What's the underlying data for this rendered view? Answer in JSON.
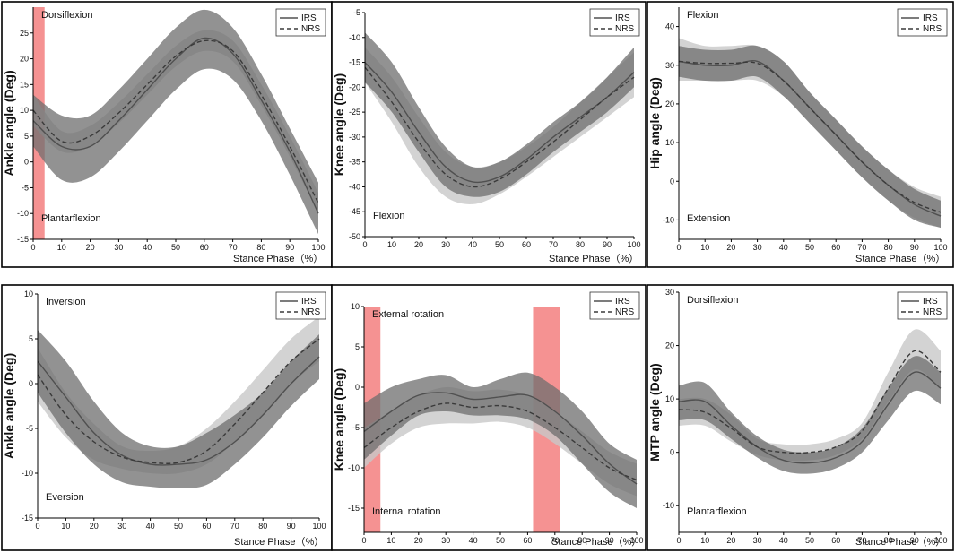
{
  "figure": {
    "colors": {
      "irs_band": "#6e6e6e",
      "nrs_band": "#c8c8c8",
      "mean_line": "#505050",
      "highlight": "#f26d6d"
    },
    "legend": {
      "irs": "IRS",
      "nrs": "NRS"
    }
  },
  "chart_data": [
    {
      "type": "line",
      "title": "",
      "ylabel": "Ankle angle (Deg)",
      "xlabel": "Stance Phase（%）",
      "xlim": [
        0,
        100
      ],
      "ylim": [
        -15,
        30
      ],
      "xticks": [
        0,
        10,
        20,
        30,
        40,
        50,
        60,
        70,
        80,
        90,
        100
      ],
      "yticks": [
        -15,
        -10,
        -5,
        0,
        5,
        10,
        15,
        20,
        25
      ],
      "legend_position": "top-right",
      "annotations": {
        "top": "Dorsiflexion",
        "bottom": "Plantarflexion"
      },
      "highlights": [
        [
          0,
          4
        ]
      ],
      "x": [
        0,
        10,
        20,
        30,
        40,
        50,
        60,
        70,
        80,
        90,
        100
      ],
      "series": [
        {
          "name": "IRS",
          "values": [
            8,
            3,
            3,
            8,
            14,
            20,
            24,
            21,
            12,
            2,
            -10
          ],
          "lower": [
            3,
            -3.5,
            -3,
            2,
            8,
            14,
            18,
            16,
            8,
            -2.5,
            -14
          ],
          "upper": [
            13,
            9,
            9,
            14,
            20,
            26,
            29.5,
            26,
            17,
            6.5,
            -4
          ]
        },
        {
          "name": "NRS",
          "values": [
            10,
            4,
            5,
            9.5,
            15,
            20.5,
            23.5,
            21.5,
            13,
            3,
            -8
          ],
          "lower": [
            7,
            2,
            3,
            7.5,
            13,
            18.5,
            21.5,
            19.5,
            11,
            1,
            -10
          ],
          "upper": [
            13,
            6,
            7,
            11.5,
            17,
            22.5,
            25.5,
            23.5,
            15,
            5,
            -6
          ]
        }
      ]
    },
    {
      "type": "line",
      "title": "",
      "ylabel": "Knee angle (Deg)",
      "xlabel": "Stance Phase（%）",
      "xlim": [
        0,
        100
      ],
      "ylim": [
        -50,
        -5
      ],
      "xticks": [
        0,
        10,
        20,
        30,
        40,
        50,
        60,
        70,
        80,
        90,
        100
      ],
      "yticks": [
        -50,
        -45,
        -40,
        -35,
        -30,
        -25,
        -20,
        -15,
        -10,
        -5
      ],
      "legend_position": "top-right",
      "annotations": {
        "top": "",
        "bottom": "Flexion"
      },
      "highlights": [],
      "x": [
        0,
        10,
        20,
        30,
        40,
        50,
        60,
        70,
        80,
        90,
        100
      ],
      "series": [
        {
          "name": "IRS",
          "values": [
            -15,
            -21,
            -29,
            -36,
            -39,
            -38,
            -34.5,
            -30,
            -26,
            -22,
            -17
          ],
          "lower": [
            -19,
            -25,
            -33,
            -40,
            -42,
            -41,
            -37.5,
            -33,
            -29,
            -25,
            -20
          ],
          "upper": [
            -9,
            -15,
            -24,
            -32,
            -36,
            -35,
            -31.5,
            -27,
            -23,
            -18,
            -12
          ]
        },
        {
          "name": "NRS",
          "values": [
            -16,
            -23,
            -31,
            -37.5,
            -40,
            -38.5,
            -35,
            -31,
            -26.5,
            -22,
            -18
          ],
          "lower": [
            -19,
            -27,
            -36,
            -42,
            -43.5,
            -41.5,
            -38,
            -34,
            -30,
            -26,
            -22
          ],
          "upper": [
            -12,
            -18,
            -26,
            -33,
            -36,
            -35,
            -32,
            -28,
            -23,
            -18,
            -13
          ]
        }
      ]
    },
    {
      "type": "line",
      "title": "",
      "ylabel": "Hip angle (Deg)",
      "xlabel": "Stance Phase（%）",
      "xlim": [
        0,
        100
      ],
      "ylim": [
        -15,
        45
      ],
      "xticks": [
        0,
        10,
        20,
        30,
        40,
        50,
        60,
        70,
        80,
        90,
        100
      ],
      "yticks": [
        -10,
        0,
        10,
        20,
        30,
        40
      ],
      "legend_position": "top-right",
      "annotations": {
        "top": "Flexion",
        "bottom": "Extension"
      },
      "highlights": [],
      "x": [
        0,
        10,
        20,
        30,
        40,
        50,
        60,
        70,
        80,
        90,
        100
      ],
      "series": [
        {
          "name": "IRS",
          "values": [
            31,
            30,
            30,
            31,
            26,
            19,
            12,
            5,
            -1,
            -6,
            -9
          ],
          "lower": [
            27,
            26,
            26,
            27,
            22,
            15,
            8,
            1,
            -5,
            -10,
            -12
          ],
          "upper": [
            35,
            34,
            34,
            35,
            31,
            23,
            16,
            9,
            3,
            -2,
            -5
          ]
        },
        {
          "name": "NRS",
          "values": [
            31,
            30.5,
            30.5,
            30.5,
            26,
            19,
            12,
            5,
            -1,
            -5.5,
            -8
          ],
          "lower": [
            26,
            26,
            26,
            26,
            22,
            15,
            8,
            1,
            -5,
            -9.5,
            -12
          ],
          "upper": [
            37,
            35,
            35,
            35,
            31,
            23,
            16,
            9,
            3,
            -1.5,
            -4
          ]
        }
      ]
    },
    {
      "type": "line",
      "title": "",
      "ylabel": "Ankle angle (Deg)",
      "xlabel": "Stance Phase（%）",
      "xlim": [
        0,
        100
      ],
      "ylim": [
        -15,
        10
      ],
      "xticks": [
        0,
        10,
        20,
        30,
        40,
        50,
        60,
        70,
        80,
        90,
        100
      ],
      "yticks": [
        -15,
        -10,
        -5,
        0,
        5,
        10
      ],
      "legend_position": "top-right",
      "annotations": {
        "top": "Inversion",
        "bottom": "Eversion"
      },
      "highlights": [],
      "x": [
        0,
        10,
        20,
        30,
        40,
        50,
        60,
        70,
        80,
        90,
        100
      ],
      "series": [
        {
          "name": "IRS",
          "values": [
            2.5,
            -1.5,
            -5.5,
            -8,
            -9,
            -9,
            -8.5,
            -6.5,
            -3.5,
            0,
            3
          ],
          "lower": [
            -1,
            -5.5,
            -9,
            -11,
            -11.5,
            -11.7,
            -11.3,
            -9,
            -6,
            -2.5,
            0.5
          ],
          "upper": [
            6,
            2.5,
            -2,
            -5.5,
            -7,
            -7,
            -5.5,
            -3.5,
            -1,
            2.5,
            5.5
          ]
        },
        {
          "name": "NRS",
          "values": [
            1,
            -3.5,
            -6.5,
            -8.2,
            -8.8,
            -8.8,
            -7.5,
            -4.5,
            -1,
            2.5,
            5
          ],
          "lower": [
            -2,
            -6,
            -8.5,
            -9.5,
            -10,
            -10,
            -9,
            -6.5,
            -3.5,
            0,
            2.5
          ],
          "upper": [
            4,
            -1,
            -4.5,
            -7,
            -7.5,
            -7,
            -5,
            -2,
            1.5,
            5,
            7.5
          ]
        }
      ]
    },
    {
      "type": "line",
      "title": "",
      "ylabel": "Knee angle (Deg)",
      "xlabel": "Stance Phase（%）",
      "xlim": [
        0,
        100
      ],
      "ylim": [
        -18,
        10
      ],
      "xticks": [
        0,
        10,
        20,
        30,
        40,
        50,
        60,
        70,
        80,
        90,
        100
      ],
      "yticks": [
        -15,
        -10,
        -5,
        0,
        5,
        10
      ],
      "legend_position": "top-right",
      "annotations": {
        "top": "External rotation",
        "bottom": "Internal rotation"
      },
      "highlights": [
        [
          0,
          6
        ],
        [
          62,
          72
        ]
      ],
      "x": [
        0,
        10,
        20,
        30,
        40,
        50,
        60,
        70,
        80,
        90,
        100
      ],
      "series": [
        {
          "name": "IRS",
          "values": [
            -5.5,
            -3,
            -1,
            -0.7,
            -1.5,
            -1.2,
            -1,
            -3,
            -6,
            -9.5,
            -12
          ],
          "lower": [
            -9,
            -6,
            -3.5,
            -3,
            -3.5,
            -3.5,
            -4,
            -6,
            -9.5,
            -13,
            -15
          ],
          "upper": [
            -2,
            0,
            1,
            1.5,
            0,
            1,
            1.8,
            0,
            -3,
            -7,
            -9
          ]
        },
        {
          "name": "NRS",
          "values": [
            -7.5,
            -5,
            -3,
            -2,
            -2.5,
            -2.3,
            -3,
            -5,
            -7.5,
            -10,
            -11.5
          ],
          "lower": [
            -10,
            -7,
            -5,
            -4.5,
            -4.5,
            -4.3,
            -5,
            -7,
            -9.5,
            -12,
            -13.5
          ],
          "upper": [
            -5,
            -3,
            -1,
            0,
            -0.5,
            -0.3,
            -1,
            -3,
            -5.5,
            -8,
            -9.5
          ]
        }
      ]
    },
    {
      "type": "line",
      "title": "",
      "ylabel": "MTP angle (Deg)",
      "xlabel": "Stance Phase（%）",
      "xlim": [
        0,
        100
      ],
      "ylim": [
        -15,
        30
      ],
      "xticks": [
        0,
        10,
        20,
        30,
        40,
        50,
        60,
        70,
        80,
        90,
        100
      ],
      "yticks": [
        -10,
        0,
        10,
        20,
        30
      ],
      "legend_position": "top-right",
      "annotations": {
        "top": "Dorsiflexion",
        "bottom": "Plantarflexion"
      },
      "highlights": [],
      "x": [
        0,
        10,
        20,
        30,
        40,
        50,
        60,
        70,
        80,
        90,
        100
      ],
      "series": [
        {
          "name": "IRS",
          "values": [
            9.5,
            9.5,
            5,
            1,
            -1.5,
            -2,
            -1,
            2,
            9,
            15,
            12
          ],
          "lower": [
            6,
            6,
            2.5,
            -1,
            -3.5,
            -4,
            -3,
            0,
            6,
            11.5,
            9
          ],
          "upper": [
            12.5,
            13,
            7.5,
            3,
            0.5,
            0,
            1,
            4.5,
            12,
            18,
            15
          ]
        },
        {
          "name": "NRS",
          "values": [
            8,
            7.5,
            4.5,
            1,
            0,
            0,
            1,
            4,
            12,
            19,
            15
          ],
          "lower": [
            5,
            5,
            2,
            -0.5,
            -1.5,
            -1.5,
            -0.5,
            2.5,
            9.5,
            15.5,
            12
          ],
          "upper": [
            10,
            10,
            7,
            2.5,
            1.5,
            1.5,
            2.5,
            5.5,
            15,
            23,
            19
          ]
        }
      ]
    }
  ]
}
